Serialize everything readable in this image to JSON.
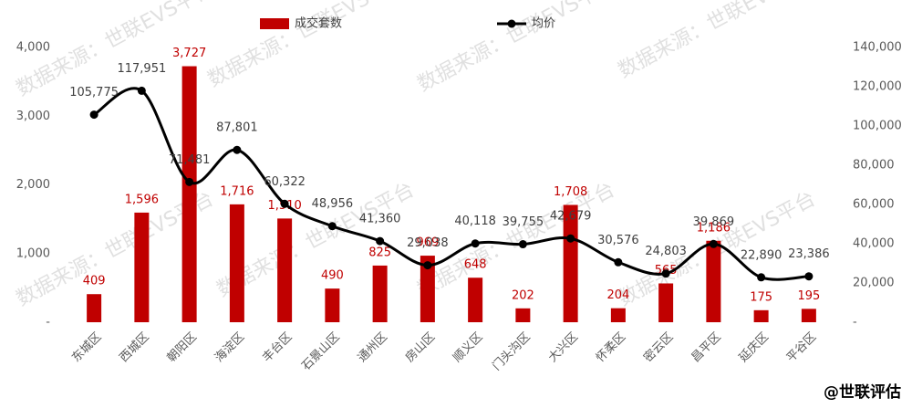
{
  "chart_data": {
    "type": "bar-line",
    "categories": [
      "东城区",
      "西城区",
      "朝阳区",
      "海淀区",
      "丰台区",
      "石景山区",
      "通州区",
      "房山区",
      "顺义区",
      "门头沟区",
      "大兴区",
      "怀柔区",
      "密云区",
      "昌平区",
      "延庆区",
      "平谷区"
    ],
    "series": [
      {
        "name": "成交套数",
        "color": "#c00000",
        "kind": "bar",
        "values": [
          409,
          1596,
          3727,
          1716,
          1510,
          490,
          825,
          969,
          648,
          202,
          1708,
          204,
          565,
          1186,
          175,
          195
        ],
        "value_labels": [
          "409",
          "1,596",
          "3,727",
          "1,716",
          "1,510",
          "490",
          "825",
          "969",
          "648",
          "202",
          "1,708",
          "204",
          "565",
          "1,186",
          "175",
          "195"
        ]
      },
      {
        "name": "均价",
        "color": "#000000",
        "kind": "line",
        "axis": "y2",
        "values": [
          105775,
          117951,
          71481,
          87801,
          60322,
          48956,
          41360,
          29038,
          40118,
          39755,
          42679,
          30576,
          24803,
          39869,
          22890,
          23386
        ],
        "value_labels": [
          "105,775",
          "117,951",
          "71,481",
          "87,801",
          "60,322",
          "48,956",
          "41,360",
          "29,038",
          "40,118",
          "39,755",
          "42,679",
          "30,576",
          "24,803",
          "39,869",
          "22,890",
          "23,386"
        ]
      }
    ],
    "ylim": [
      0,
      4000
    ],
    "yticks": [
      {
        "value": 0,
        "label": "-"
      },
      {
        "value": 1000,
        "label": "1,000"
      },
      {
        "value": 2000,
        "label": "2,000"
      },
      {
        "value": 3000,
        "label": "3,000"
      },
      {
        "value": 4000,
        "label": "4,000"
      }
    ],
    "y2lim": [
      0,
      140000
    ],
    "y2ticks": [
      {
        "value": 0,
        "label": "-"
      },
      {
        "value": 20000,
        "label": "20,000"
      },
      {
        "value": 40000,
        "label": "40,000"
      },
      {
        "value": 60000,
        "label": "60,000"
      },
      {
        "value": 80000,
        "label": "80,000"
      },
      {
        "value": 100000,
        "label": "100,000"
      },
      {
        "value": 120000,
        "label": "120,000"
      },
      {
        "value": 140000,
        "label": "140,000"
      }
    ],
    "legend": "top",
    "watermark": "数据来源：世联EVS平台",
    "footer": "@世联评估"
  }
}
